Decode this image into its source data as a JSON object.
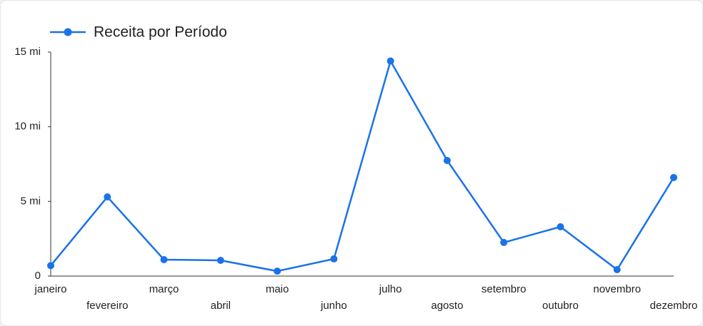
{
  "chart_data": {
    "type": "line",
    "categories": [
      "janeiro",
      "fevereiro",
      "março",
      "abril",
      "maio",
      "junho",
      "julho",
      "agosto",
      "setembro",
      "outubro",
      "novembro",
      "dezembro"
    ],
    "series": [
      {
        "name": "Receita por Período",
        "color": "#1a73e8",
        "values": [
          0.7,
          5.3,
          1.1,
          1.05,
          0.33,
          1.15,
          14.4,
          7.74,
          2.25,
          3.3,
          0.43,
          6.6
        ]
      }
    ],
    "ylim": [
      0,
      15
    ],
    "yticks": [
      0,
      {
        "value": 5,
        "label": "5 mi"
      },
      {
        "value": 10,
        "label": "10 mi"
      },
      {
        "value": 15,
        "label": "15 mi"
      }
    ],
    "legend": "top-left"
  }
}
